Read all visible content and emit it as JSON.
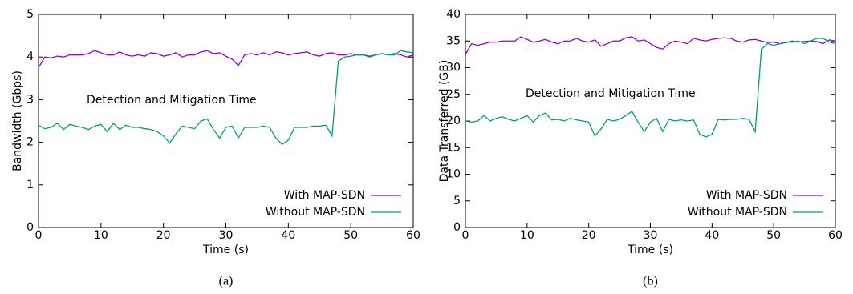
{
  "chart_data": [
    {
      "type": "line",
      "caption": "(a)",
      "xlabel": "Time (s)",
      "ylabel": "Bandwidth (Gbps)",
      "annotation": "Detection and Mitigation Time",
      "x": [
        0,
        1,
        2,
        3,
        4,
        5,
        6,
        7,
        8,
        9,
        10,
        11,
        12,
        13,
        14,
        15,
        16,
        17,
        18,
        19,
        20,
        21,
        22,
        23,
        24,
        25,
        26,
        27,
        28,
        29,
        30,
        31,
        32,
        33,
        34,
        35,
        36,
        37,
        38,
        39,
        40,
        41,
        42,
        43,
        44,
        45,
        46,
        47,
        48,
        49,
        50,
        51,
        52,
        53,
        54,
        55,
        56,
        57,
        58,
        59,
        60
      ],
      "series": [
        {
          "name": "With MAP-SDN",
          "color": "#9400d3",
          "values": [
            3.75,
            4.0,
            3.98,
            4.02,
            4.0,
            4.05,
            4.05,
            4.05,
            4.08,
            4.15,
            4.1,
            4.05,
            4.05,
            4.12,
            4.05,
            4.02,
            4.05,
            4.02,
            4.1,
            4.08,
            4.02,
            4.05,
            4.1,
            4.0,
            4.05,
            4.05,
            4.12,
            4.15,
            4.08,
            4.1,
            4.02,
            3.95,
            3.8,
            4.05,
            4.08,
            4.05,
            4.1,
            4.05,
            4.12,
            4.1,
            4.05,
            4.08,
            4.1,
            4.12,
            4.05,
            4.02,
            4.08,
            4.1,
            4.05,
            4.05,
            4.08,
            4.05,
            4.05,
            4.02,
            4.05,
            4.08,
            4.05,
            4.08,
            4.05,
            4.0,
            4.05
          ]
        },
        {
          "name": "Without MAP-SDN",
          "color": "#009e73",
          "values": [
            2.4,
            2.32,
            2.35,
            2.45,
            2.3,
            2.42,
            2.38,
            2.35,
            2.3,
            2.38,
            2.42,
            2.25,
            2.45,
            2.3,
            2.4,
            2.35,
            2.35,
            2.32,
            2.3,
            2.25,
            2.15,
            1.98,
            2.2,
            2.38,
            2.35,
            2.32,
            2.5,
            2.55,
            2.3,
            2.1,
            2.35,
            2.38,
            2.1,
            2.35,
            2.35,
            2.35,
            2.38,
            2.35,
            2.1,
            1.95,
            2.05,
            2.35,
            2.35,
            2.35,
            2.38,
            2.38,
            2.4,
            2.15,
            3.9,
            4.0,
            4.02,
            4.05,
            4.05,
            4.0,
            4.05,
            4.08,
            4.05,
            4.05,
            4.15,
            4.12,
            4.1
          ]
        }
      ],
      "xlim": [
        0,
        60
      ],
      "xticks": [
        0,
        10,
        20,
        30,
        40,
        50,
        60
      ],
      "ylim": [
        0,
        5
      ],
      "yticks": [
        0,
        1,
        2,
        3,
        4,
        5
      ],
      "grid": false,
      "legend": "lower right"
    },
    {
      "type": "line",
      "caption": "(b)",
      "xlabel": "Time (s)",
      "ylabel": "Data Transferred (GB)",
      "annotation": "Detection and Mitigation Time",
      "x": [
        0,
        1,
        2,
        3,
        4,
        5,
        6,
        7,
        8,
        9,
        10,
        11,
        12,
        13,
        14,
        15,
        16,
        17,
        18,
        19,
        20,
        21,
        22,
        23,
        24,
        25,
        26,
        27,
        28,
        29,
        30,
        31,
        32,
        33,
        34,
        35,
        36,
        37,
        38,
        39,
        40,
        41,
        42,
        43,
        44,
        45,
        46,
        47,
        48,
        49,
        50,
        51,
        52,
        53,
        54,
        55,
        56,
        57,
        58,
        59,
        60
      ],
      "series": [
        {
          "name": "With MAP-SDN",
          "color": "#9400d3",
          "values": [
            32.5,
            34.5,
            34.2,
            34.5,
            34.8,
            34.8,
            35,
            35,
            35,
            35.8,
            35.3,
            34.8,
            35,
            35.3,
            34.8,
            34.5,
            35,
            35,
            35.5,
            35,
            34.8,
            35.2,
            34,
            34.5,
            35,
            35,
            35.6,
            35.8,
            35,
            35.2,
            34.5,
            33.8,
            33.5,
            34.5,
            35,
            34.8,
            34.5,
            35.5,
            35.2,
            35,
            35.3,
            35.5,
            35.6,
            35.5,
            35,
            34.8,
            35.2,
            35.3,
            35,
            34.7,
            34.8,
            34.5,
            34.7,
            35,
            34.8,
            34.9,
            35,
            34.9,
            34.5,
            35.2,
            35
          ]
        },
        {
          "name": "Without MAP-SDN",
          "color": "#009e73",
          "values": [
            20,
            19.8,
            20,
            21,
            20,
            20.5,
            20.8,
            20.3,
            20,
            20.5,
            21,
            19.8,
            21,
            21.5,
            20.2,
            20.3,
            20,
            20.5,
            20.2,
            20,
            19.8,
            17.2,
            18.5,
            20.3,
            20,
            20.3,
            21,
            21.8,
            19.8,
            18,
            19.8,
            20.5,
            18,
            20.3,
            20,
            20.2,
            20,
            20.2,
            17.5,
            17,
            17.5,
            20.3,
            20.2,
            20.3,
            20.3,
            20.5,
            20.3,
            18,
            33.5,
            34.5,
            34.2,
            34.5,
            34.8,
            34.8,
            35,
            34.5,
            35,
            35.5,
            35.5,
            34.8,
            34.5
          ]
        }
      ],
      "xlim": [
        0,
        60
      ],
      "xticks": [
        0,
        10,
        20,
        30,
        40,
        50,
        60
      ],
      "ylim": [
        0,
        40
      ],
      "yticks": [
        0,
        5,
        10,
        15,
        20,
        25,
        30,
        35,
        40
      ],
      "grid": false,
      "legend": "lower right"
    }
  ]
}
